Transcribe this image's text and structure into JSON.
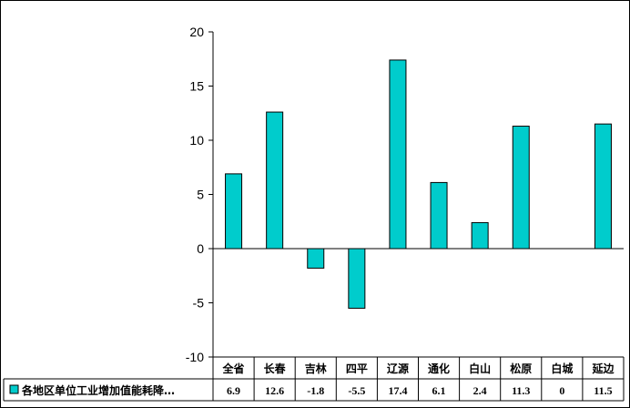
{
  "chart_data": {
    "type": "bar",
    "title": "",
    "xlabel": "",
    "ylabel": "",
    "ylim": [
      -10,
      20
    ],
    "yticks": [
      -10,
      -5,
      0,
      5,
      10,
      15,
      20
    ],
    "categories": [
      "全省",
      "长春",
      "吉林",
      "四平",
      "辽源",
      "通化",
      "白山",
      "松原",
      "白城",
      "延边"
    ],
    "series": [
      {
        "name": "各地区单位工业增加值能耗降…",
        "values": [
          6.9,
          12.6,
          -1.8,
          -5.5,
          17.4,
          6.1,
          2.4,
          11.3,
          0,
          11.5
        ],
        "value_labels": [
          "6.9",
          "12.6",
          "-1.8",
          "-5.5",
          "17.4",
          "6.1",
          "2.4",
          "11.3",
          "0",
          "11.5"
        ]
      }
    ],
    "data_table": true,
    "legend_position": "data-table-left",
    "grid": false,
    "colors": {
      "bar_fill": "#00CCCC",
      "bar_stroke": "#000000",
      "axis": "#000000"
    }
  }
}
